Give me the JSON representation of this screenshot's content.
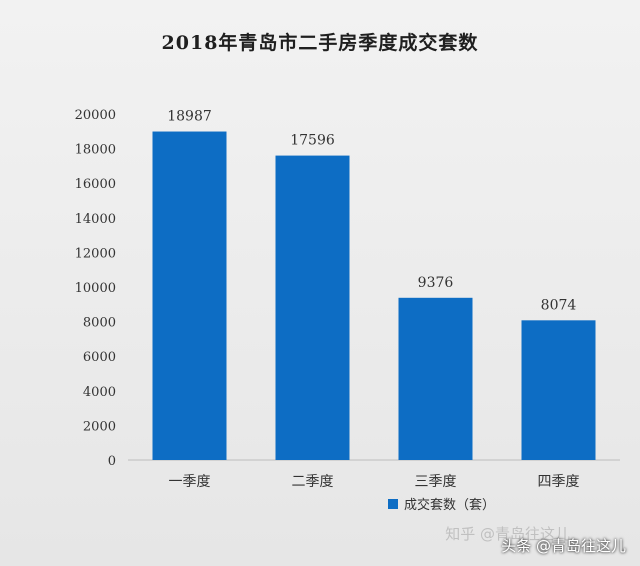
{
  "chart_data": {
    "type": "bar",
    "title": "2018年青岛市二手房季度成交套数",
    "categories": [
      "一季度",
      "二季度",
      "三季度",
      "四季度"
    ],
    "series": [
      {
        "name": "成交套数（套）",
        "values": [
          18987,
          17596,
          9376,
          8074
        ],
        "color": "#0d6dc4"
      }
    ],
    "data_labels": [
      "18987",
      "17596",
      "9376",
      "8074"
    ],
    "ylim": [
      0,
      20000
    ],
    "yticks": [
      "0",
      "2000",
      "4000",
      "6000",
      "8000",
      "10000",
      "12000",
      "14000",
      "16000",
      "18000",
      "20000"
    ],
    "grid": false,
    "legend_position": "bottom-center",
    "xlabel": "",
    "ylabel": ""
  },
  "watermark": {
    "text": "头条 @青岛往这儿",
    "faint_text": "知乎 @青岛往这儿"
  }
}
